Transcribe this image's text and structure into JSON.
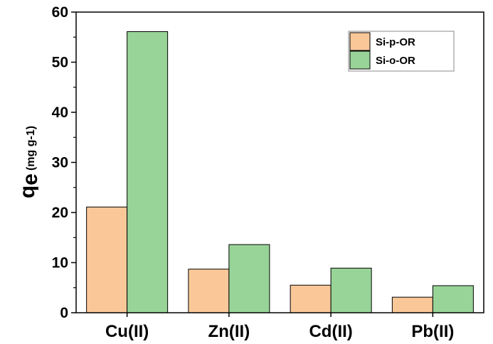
{
  "chart_data": {
    "type": "bar",
    "categories": [
      "Cu(II)",
      "Zn(II)",
      "Cd(II)",
      "Pb(II)"
    ],
    "series": [
      {
        "name": "Si-p-OR",
        "values": [
          21.1,
          8.7,
          5.5,
          3.1
        ],
        "color": "#FAC898"
      },
      {
        "name": "Si-o-OR",
        "values": [
          56.1,
          13.6,
          8.9,
          5.4
        ],
        "color": "#98D498"
      }
    ],
    "ylabel_main": "q",
    "ylabel_sub": "e",
    "ylabel_unit": "(mg g-1)",
    "ylim": [
      0,
      60
    ],
    "yticks": [
      0,
      10,
      20,
      30,
      40,
      50,
      60
    ],
    "ytick_labels": [
      "0",
      "10",
      "20",
      "30",
      "40",
      "50",
      "60"
    ],
    "grid": false,
    "legend_position": "top-right",
    "bar_edge_color": "#000000"
  }
}
